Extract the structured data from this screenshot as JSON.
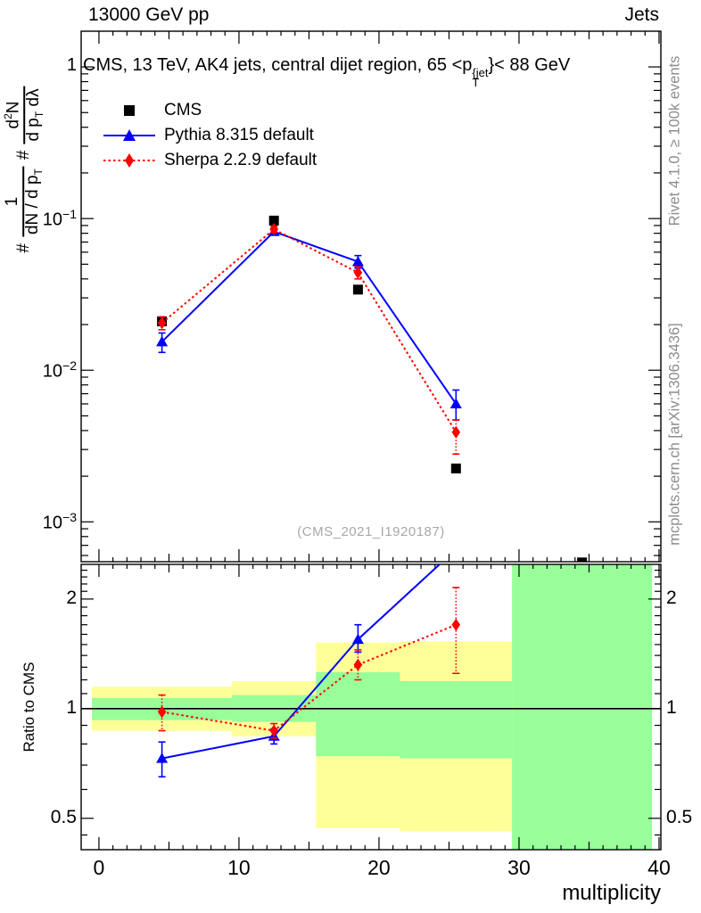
{
  "header": {
    "left": "13000 GeV pp",
    "right": "Jets"
  },
  "panel_title": {
    "pre": "CMS, 13 TeV, AK4 jets, central dijet region, 65 <p",
    "sup": "{jet",
    "sub": "T",
    "post": "}< 88 GeV"
  },
  "legend": [
    {
      "label": "CMS",
      "marker": "square",
      "color": "#000000",
      "line": "none"
    },
    {
      "label": "Pythia 8.315 default",
      "marker": "triangle",
      "color": "#0000ff",
      "line": "solid"
    },
    {
      "label": "Sherpa 2.2.9 default",
      "marker": "diamond",
      "color": "#ff0000",
      "line": "dotted"
    }
  ],
  "watermark": "(CMS_2021_I1920187)",
  "right_margin": {
    "top": "Rivet 4.1.0, ≥ 100k events",
    "bottom": "mcplots.cern.ch [arXiv:1306.3436]"
  },
  "ratio_axis_title": "Ratio to CMS",
  "xlabel": "multiplicity",
  "yaxis_label": {
    "hash1": "#",
    "frac1_num": "1",
    "frac1_den": "dN / d p",
    "frac1_den_sub": "T",
    "hash2": "#",
    "frac2_num_a": "d",
    "frac2_num_sup": "2",
    "frac2_num_b": "N",
    "frac2_den_a": "d p",
    "frac2_den_sub": "T",
    "frac2_den_b": " dλ"
  },
  "colors": {
    "cms": "#000000",
    "pythia": "#0000ff",
    "sherpa": "#ff0000",
    "band_yellow": "#ffff99",
    "band_green": "#99ff99",
    "watermark": "#a8a8a8",
    "margin_text": "#8c8c8c"
  },
  "chart_data": [
    {
      "id": "main",
      "type": "line",
      "y_scale": "log",
      "xlim": [
        -1.27,
        40.13
      ],
      "ylim_log": [
        0.000546,
        1.72
      ],
      "xticks": {
        "values": [
          0,
          10,
          20,
          30,
          40
        ],
        "labels": [
          "0",
          "10",
          "20",
          "30",
          "40"
        ]
      },
      "yticks": {
        "values": [
          1,
          0.1,
          0.01,
          0.001
        ],
        "labels": [
          "1",
          "10^-1",
          "10^-2",
          "10^-3"
        ]
      },
      "series": [
        {
          "name": "CMS",
          "color": "#000000",
          "marker": "square",
          "line": "none",
          "x": [
            4.5,
            12.5,
            18.5,
            25.5,
            34.5
          ],
          "y": [
            0.021,
            0.097,
            0.034,
            0.00225,
            0.00054
          ]
        },
        {
          "name": "Pythia 8.315 default",
          "color": "#0000ff",
          "marker": "triangle",
          "line": "solid",
          "x": [
            4.5,
            12.5,
            18.5,
            25.5
          ],
          "y": [
            0.0154,
            0.082,
            0.052,
            0.006
          ],
          "yerr_lo": [
            0.0131,
            0.078,
            0.047,
            0.0047
          ],
          "yerr_hi": [
            0.0176,
            0.086,
            0.057,
            0.0074
          ]
        },
        {
          "name": "Sherpa 2.2.9 default",
          "color": "#ff0000",
          "marker": "diamond",
          "line": "dotted",
          "x": [
            4.5,
            12.5,
            18.5,
            25.5
          ],
          "y": [
            0.0205,
            0.085,
            0.044,
            0.0039
          ],
          "yerr_lo": [
            0.0185,
            0.081,
            0.04,
            0.0028
          ],
          "yerr_hi": [
            0.0225,
            0.089,
            0.048,
            0.0047
          ]
        }
      ]
    },
    {
      "id": "ratio",
      "type": "line",
      "y_scale": "log",
      "xlim": [
        -1.27,
        40.13
      ],
      "ylim_log": [
        0.41,
        2.49
      ],
      "yticks": {
        "values": [
          2,
          1,
          0.5
        ],
        "labels": [
          "2",
          "1",
          "0.5"
        ]
      },
      "reference_line": 1,
      "bands": {
        "bin_edges": [
          -0.5,
          9.5,
          15.5,
          21.5,
          29.5,
          39.5
        ],
        "yellow": {
          "lo": [
            0.87,
            0.84,
            0.47,
            0.46,
            null
          ],
          "hi": [
            1.15,
            1.19,
            1.52,
            1.53,
            null
          ]
        },
        "green": {
          "lo": [
            0.93,
            0.92,
            0.74,
            0.73,
            0.41
          ],
          "hi": [
            1.07,
            1.09,
            1.26,
            1.19,
            2.49
          ]
        }
      },
      "series": [
        {
          "name": "Pythia 8.315 default",
          "color": "#0000ff",
          "marker": "triangle",
          "line": "solid",
          "x": [
            4.5,
            12.5,
            18.5,
            25.5
          ],
          "y": [
            0.73,
            0.84,
            1.55,
            2.74
          ],
          "yerr_lo": [
            0.65,
            0.8,
            1.43,
            null
          ],
          "yerr_hi": [
            0.81,
            0.88,
            1.7,
            null
          ]
        },
        {
          "name": "Sherpa 2.2.9 default",
          "color": "#ff0000",
          "marker": "diamond",
          "line": "dotted",
          "x": [
            4.5,
            12.5,
            18.5,
            25.5
          ],
          "y": [
            0.98,
            0.87,
            1.32,
            1.7
          ],
          "yerr_lo": [
            0.87,
            0.83,
            1.2,
            1.25
          ],
          "yerr_hi": [
            1.09,
            0.91,
            1.45,
            2.15
          ]
        }
      ]
    }
  ]
}
